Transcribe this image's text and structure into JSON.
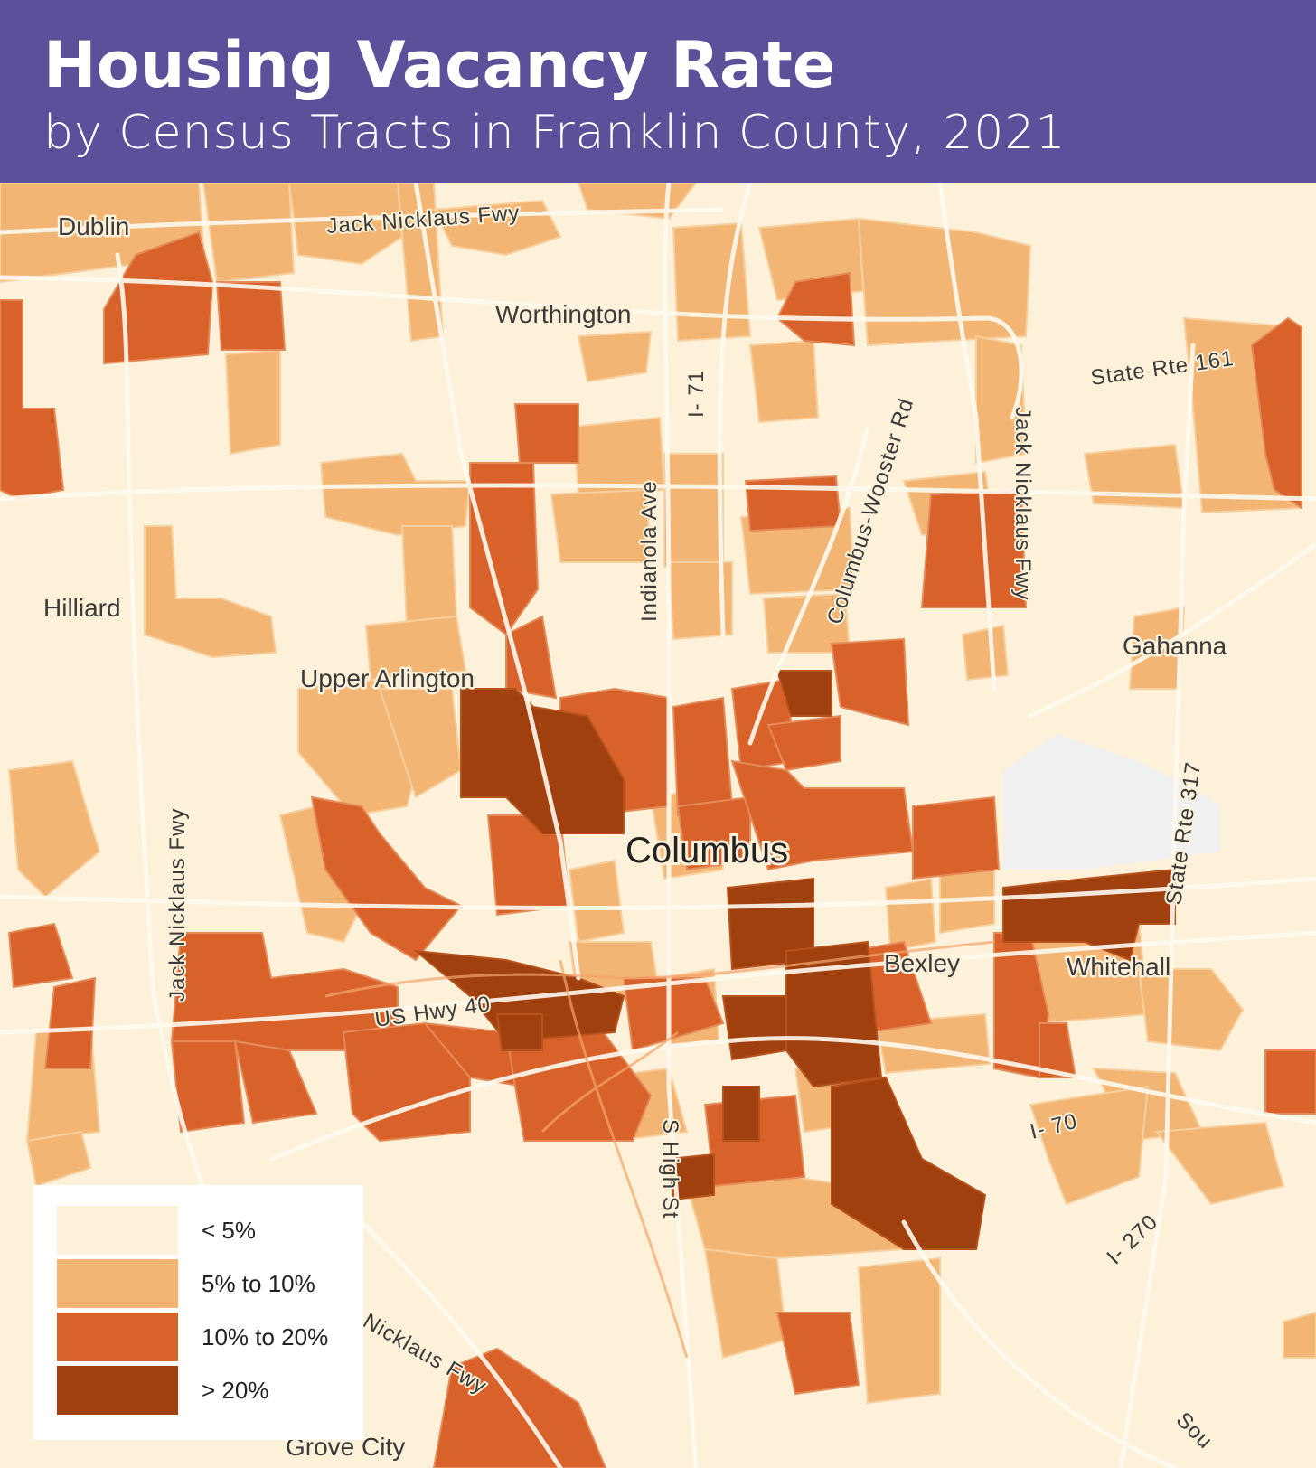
{
  "header": {
    "title": "Housing Vacancy Rate",
    "subtitle": "by Census Tracts in Franklin County, 2021"
  },
  "colors": {
    "header_bg": "#5c509a",
    "map_bg": "#fdf1d9",
    "roads": "#fffaf0",
    "no_data": "#f0f0f0"
  },
  "legend": {
    "items": [
      {
        "label": "< 5%",
        "color": "#fdf1d9"
      },
      {
        "label": "5% to 10%",
        "color": "#f2b574"
      },
      {
        "label": "10% to 20%",
        "color": "#d9622b"
      },
      {
        "label": "> 20%",
        "color": "#a0400f"
      }
    ]
  },
  "map": {
    "places": {
      "dublin": "Dublin",
      "worthington": "Worthington",
      "hilliard": "Hilliard",
      "upper_arlington": "Upper Arlington",
      "columbus": "Columbus",
      "gahanna": "Gahanna",
      "bexley": "Bexley",
      "whitehall": "Whitehall",
      "grove_city": "Grove City"
    },
    "roads": {
      "jnf_top": "Jack Nicklaus Fwy",
      "i71": "I- 71",
      "indianola": "Indianola Ave",
      "columbus_wooster": "Columbus-Wooster Rd",
      "jnf_east": "Jack Nicklaus Fwy",
      "sr161": "State Rte 161",
      "jnf_west": "Jack Nicklaus Fwy",
      "us40": "US Hwy 40",
      "sr317": "State Rte 317",
      "s_high": "S High St",
      "i70": "I- 70",
      "i270": "I- 270",
      "jnf_south": "Nicklaus Fwy",
      "south_edge": "Sou"
    }
  }
}
